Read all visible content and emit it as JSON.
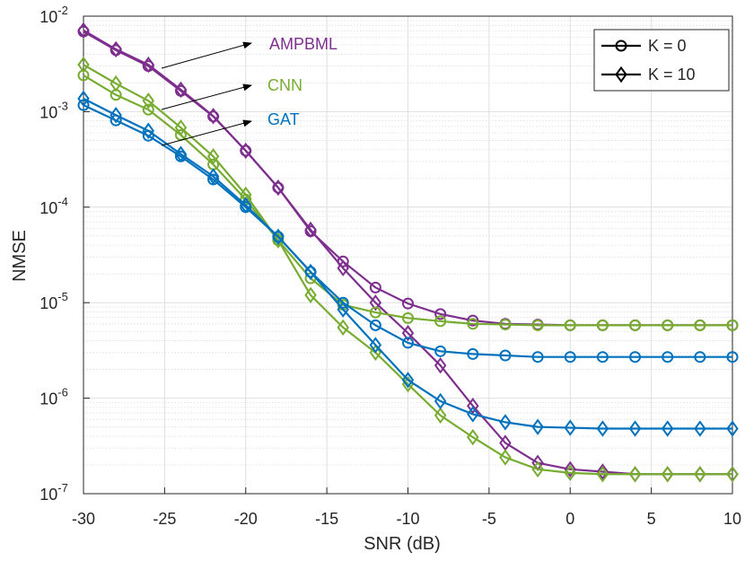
{
  "chart_data": {
    "type": "line",
    "x_label": "SNR (dB)",
    "y_label": "NMSE",
    "x": [
      -30,
      -28,
      -26,
      -24,
      -22,
      -20,
      -18,
      -16,
      -14,
      -12,
      -10,
      -8,
      -6,
      -4,
      -2,
      0,
      2,
      4,
      6,
      8,
      10
    ],
    "series": [
      {
        "color": "#7E2F8E",
        "marker": "circle",
        "values": [
          0.0069,
          0.0044,
          0.003,
          0.00165,
          0.00089,
          0.00039,
          0.00016,
          5.6e-05,
          2.7e-05,
          1.44e-05,
          9.8e-06,
          7.6e-06,
          6.5e-06,
          6e-06,
          5.9e-06,
          5.8e-06,
          5.8e-06,
          5.8e-06,
          5.8e-06,
          5.8e-06,
          5.8e-06
        ]
      },
      {
        "color": "#7E2F8E",
        "marker": "diamond",
        "values": [
          0.0071,
          0.0045,
          0.0031,
          0.0017,
          0.0009,
          0.00039,
          0.00016,
          5.8e-05,
          2.3e-05,
          1e-05,
          4.8e-06,
          2.2e-06,
          8.3e-07,
          3.4e-07,
          2.1e-07,
          1.8e-07,
          1.7e-07,
          1.6e-07,
          1.6e-07,
          1.6e-07,
          1.6e-07
        ]
      },
      {
        "color": "#77AC30",
        "marker": "circle",
        "values": [
          0.0024,
          0.0015,
          0.00105,
          0.00057,
          0.00028,
          0.00012,
          4.5e-05,
          1.8e-05,
          9.5e-06,
          7.9e-06,
          6.9e-06,
          6.4e-06,
          6e-06,
          5.9e-06,
          5.8e-06,
          5.8e-06,
          5.8e-06,
          5.8e-06,
          5.8e-06,
          5.8e-06,
          5.8e-06
        ]
      },
      {
        "color": "#77AC30",
        "marker": "diamond",
        "values": [
          0.0031,
          0.00197,
          0.0013,
          0.00068,
          0.00034,
          0.000135,
          4.5e-05,
          1.2e-05,
          5.5e-06,
          3e-06,
          1.4e-06,
          6.6e-07,
          3.9e-07,
          2.4e-07,
          1.8e-07,
          1.65e-07,
          1.6e-07,
          1.6e-07,
          1.6e-07,
          1.6e-07,
          1.6e-07
        ]
      },
      {
        "color": "#0072BD",
        "marker": "circle",
        "values": [
          0.00117,
          0.00081,
          0.00056,
          0.00034,
          0.000195,
          0.0001,
          4.9e-05,
          2.1e-05,
          1e-05,
          5.8e-06,
          3.8e-06,
          3.1e-06,
          2.9e-06,
          2.8e-06,
          2.7e-06,
          2.7e-06,
          2.7e-06,
          2.7e-06,
          2.7e-06,
          2.7e-06,
          2.7e-06
        ]
      },
      {
        "color": "#0072BD",
        "marker": "diamond",
        "values": [
          0.00137,
          0.00092,
          0.00063,
          0.00036,
          0.00021,
          0.000105,
          4.9e-05,
          2.1e-05,
          8.5e-06,
          3.6e-06,
          1.55e-06,
          9.3e-07,
          6.8e-07,
          5.6e-07,
          5e-07,
          4.9e-07,
          4.8e-07,
          4.8e-07,
          4.8e-07,
          4.8e-07,
          4.8e-07
        ]
      }
    ],
    "annotations": [
      {
        "text": "AMPBML",
        "color": "#7E2F8E"
      },
      {
        "text": "CNN",
        "color": "#77AC30"
      },
      {
        "text": "GAT",
        "color": "#0072BD"
      }
    ],
    "legend": {
      "position": "northeast",
      "color": "#000000",
      "entries": [
        {
          "label": "K = 0",
          "marker": "circle"
        },
        {
          "label": "K = 10",
          "marker": "diamond"
        }
      ]
    },
    "xlim": [
      -30,
      10
    ],
    "xticks": [
      -30,
      -25,
      -20,
      -15,
      -10,
      -5,
      0,
      5,
      10
    ],
    "ylim": [
      1e-07,
      0.01
    ],
    "yticks": [
      {
        "value": 1e-07,
        "label": "10",
        "exponent": "-7"
      },
      {
        "value": 1e-06,
        "label": "10",
        "exponent": "-6"
      },
      {
        "value": 1e-05,
        "label": "10",
        "exponent": "-5"
      },
      {
        "value": 0.0001,
        "label": "10",
        "exponent": "-4"
      },
      {
        "value": 0.001,
        "label": "10",
        "exponent": "-3"
      },
      {
        "value": 0.01,
        "label": "10",
        "exponent": "-2"
      }
    ],
    "log_y": true,
    "grid": true,
    "minor_grid": true
  }
}
